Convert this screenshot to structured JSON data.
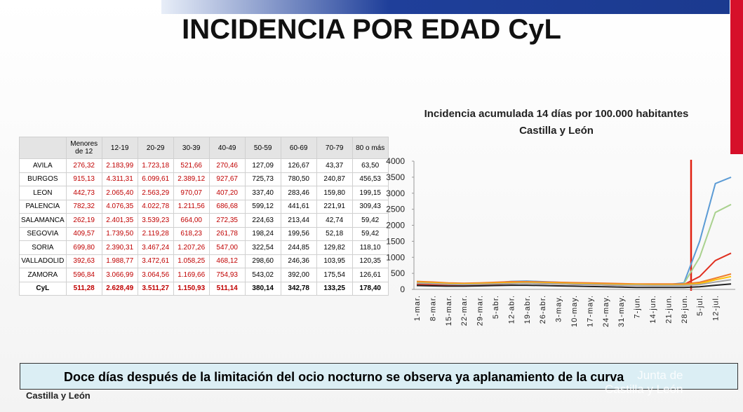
{
  "header": {
    "title": "INCIDENCIA POR EDAD CyL"
  },
  "table": {
    "header": [
      "Menores de 12",
      "12-19",
      "20-29",
      "30-39",
      "40-49",
      "50-59",
      "60-69",
      "70-79",
      "80 o más"
    ],
    "rows": [
      [
        "AVILA",
        "276,32",
        "2.183,99",
        "1.723,18",
        "521,66",
        "270,46",
        "127,09",
        "126,67",
        "43,37",
        "63,50"
      ],
      [
        "BURGOS",
        "915,13",
        "4.311,31",
        "6.099,61",
        "2.389,12",
        "927,67",
        "725,73",
        "780,50",
        "240,87",
        "456,53"
      ],
      [
        "LEON",
        "442,73",
        "2.065,40",
        "2.563,29",
        "970,07",
        "407,20",
        "337,40",
        "283,46",
        "159,80",
        "199,15"
      ],
      [
        "PALENCIA",
        "782,32",
        "4.076,35",
        "4.022,78",
        "1.211,56",
        "686,68",
        "599,12",
        "441,61",
        "221,91",
        "309,43"
      ],
      [
        "SALAMANCA",
        "262,19",
        "2.401,35",
        "3.539,23",
        "664,00",
        "272,35",
        "224,63",
        "213,44",
        "42,74",
        "59,42"
      ],
      [
        "SEGOVIA",
        "409,57",
        "1.739,50",
        "2.119,28",
        "618,23",
        "261,78",
        "198,24",
        "199,56",
        "52,18",
        "59,42"
      ],
      [
        "SORIA",
        "699,80",
        "2.390,31",
        "3.467,24",
        "1.207,26",
        "547,00",
        "322,54",
        "244,85",
        "129,82",
        "118,10"
      ],
      [
        "VALLADOLID",
        "392,63",
        "1.988,77",
        "3.472,61",
        "1.058,25",
        "468,12",
        "298,60",
        "246,36",
        "103,95",
        "120,35"
      ],
      [
        "ZAMORA",
        "596,84",
        "3.066,99",
        "3.064,56",
        "1.169,66",
        "754,93",
        "543,02",
        "392,00",
        "175,54",
        "126,61"
      ],
      [
        "CyL",
        "511,28",
        "2.628,49",
        "3.511,27",
        "1.150,93",
        "511,14",
        "380,14",
        "342,78",
        "133,25",
        "178,40"
      ]
    ]
  },
  "chart_data": {
    "type": "line",
    "title": [
      "Incidencia acumulada 14 días por 100.000 habitantes",
      "Castilla y León"
    ],
    "categories": [
      "1-mar.",
      "8-mar.",
      "15-mar.",
      "22-mar.",
      "29-mar.",
      "5-abr.",
      "12-abr.",
      "19-abr.",
      "26-abr.",
      "3-may.",
      "10-may.",
      "17-may.",
      "24-may.",
      "31-may.",
      "7-jun.",
      "14-jun.",
      "21-jun.",
      "28-jun.",
      "5-jul.",
      "12-jul.",
      null
    ],
    "ylim": [
      0,
      4000
    ],
    "yticks": [
      0,
      500,
      1000,
      1500,
      2000,
      2500,
      3000,
      3500,
      4000
    ],
    "grid": false,
    "series": [
      {
        "color": "#5b9bd5",
        "values": [
          200,
          180,
          150,
          150,
          170,
          200,
          250,
          260,
          240,
          220,
          200,
          180,
          160,
          150,
          150,
          150,
          150,
          200,
          1500,
          3300,
          3500
        ]
      },
      {
        "color": "#a9d18e",
        "values": [
          180,
          160,
          140,
          140,
          160,
          190,
          230,
          240,
          220,
          200,
          180,
          160,
          150,
          140,
          140,
          140,
          140,
          180,
          1000,
          2400,
          2650
        ]
      },
      {
        "color": "#e03020",
        "values": [
          150,
          140,
          130,
          130,
          140,
          160,
          180,
          190,
          180,
          170,
          160,
          150,
          140,
          130,
          130,
          130,
          130,
          150,
          400,
          900,
          1130
        ]
      },
      {
        "color": "#ed7d31",
        "values": [
          250,
          230,
          200,
          190,
          200,
          220,
          240,
          240,
          230,
          220,
          210,
          200,
          190,
          180,
          170,
          170,
          170,
          170,
          220,
          350,
          480
        ]
      },
      {
        "color": "#ffc000",
        "values": [
          220,
          200,
          180,
          170,
          180,
          190,
          200,
          210,
          200,
          190,
          180,
          170,
          160,
          150,
          150,
          140,
          140,
          140,
          180,
          300,
          400
        ]
      },
      {
        "color": "#a5a5a5",
        "values": [
          200,
          180,
          160,
          150,
          160,
          170,
          180,
          190,
          180,
          170,
          160,
          150,
          140,
          130,
          130,
          120,
          120,
          120,
          150,
          230,
          300
        ]
      },
      {
        "color": "#222222",
        "values": [
          120,
          110,
          100,
          100,
          110,
          120,
          130,
          130,
          120,
          110,
          100,
          90,
          80,
          70,
          60,
          60,
          60,
          60,
          80,
          130,
          170
        ]
      }
    ]
  },
  "caption": "Doce días después de la limitación del ocio nocturno se observa ya aplanamiento de la curva",
  "footer": "Castilla y León",
  "logo": [
    "Junta de",
    "Castilla y León"
  ]
}
